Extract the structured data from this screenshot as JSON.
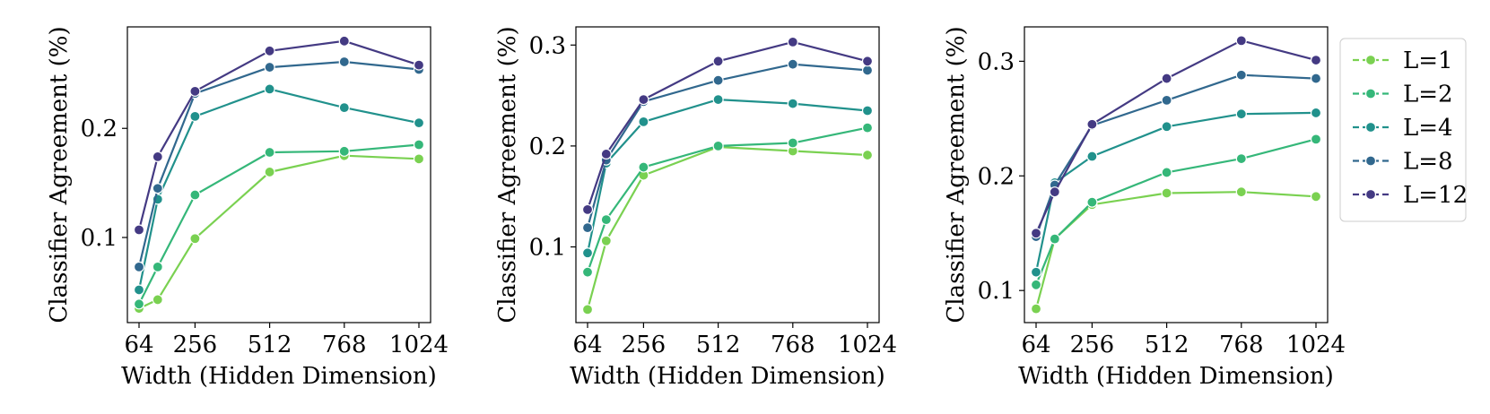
{
  "chart_data": [
    {
      "type": "line",
      "xlabel": "Width (Hidden Dimension)",
      "ylabel": "Classifier Agreement (%)",
      "x": [
        64,
        128,
        256,
        512,
        768,
        1024
      ],
      "xticks": [
        64,
        256,
        512,
        768,
        1024
      ],
      "xtick_labels": [
        "64",
        "256",
        "512",
        "768",
        "1024"
      ],
      "xlim": [
        24,
        1064
      ],
      "yticks": [
        0.1,
        0.2
      ],
      "ytick_labels": [
        "0.1",
        "0.2"
      ],
      "ylim": [
        0.022,
        0.293
      ],
      "grid": false,
      "series": [
        {
          "name": "L=1",
          "values": [
            0.035,
            0.043,
            0.099,
            0.16,
            0.175,
            0.172
          ]
        },
        {
          "name": "L=2",
          "values": [
            0.039,
            0.073,
            0.139,
            0.178,
            0.179,
            0.185
          ]
        },
        {
          "name": "L=4",
          "values": [
            0.052,
            0.135,
            0.211,
            0.236,
            0.219,
            0.205
          ]
        },
        {
          "name": "L=8",
          "values": [
            0.073,
            0.145,
            0.232,
            0.256,
            0.261,
            0.254
          ]
        },
        {
          "name": "L=12",
          "values": [
            0.107,
            0.174,
            0.234,
            0.271,
            0.28,
            0.258
          ]
        }
      ]
    },
    {
      "type": "line",
      "xlabel": "Width (Hidden Dimension)",
      "ylabel": "Classifier Agreement (%)",
      "x": [
        64,
        128,
        256,
        512,
        768,
        1024
      ],
      "xticks": [
        64,
        256,
        512,
        768,
        1024
      ],
      "xtick_labels": [
        "64",
        "256",
        "512",
        "768",
        "1024"
      ],
      "xlim": [
        24,
        1064
      ],
      "yticks": [
        0.1,
        0.2,
        0.3
      ],
      "ytick_labels": [
        "0.1",
        "0.2",
        "0.3"
      ],
      "ylim": [
        0.025,
        0.318
      ],
      "grid": false,
      "series": [
        {
          "name": "L=1",
          "values": [
            0.038,
            0.106,
            0.171,
            0.199,
            0.195,
            0.191
          ]
        },
        {
          "name": "L=2",
          "values": [
            0.075,
            0.127,
            0.179,
            0.2,
            0.203,
            0.218
          ]
        },
        {
          "name": "L=4",
          "values": [
            0.094,
            0.183,
            0.224,
            0.246,
            0.242,
            0.235
          ]
        },
        {
          "name": "L=8",
          "values": [
            0.119,
            0.186,
            0.244,
            0.265,
            0.281,
            0.275
          ]
        },
        {
          "name": "L=12",
          "values": [
            0.137,
            0.192,
            0.246,
            0.284,
            0.303,
            0.284
          ]
        }
      ]
    },
    {
      "type": "line",
      "xlabel": "Width (Hidden Dimension)",
      "ylabel": "Classifier Agreement (%)",
      "x": [
        64,
        128,
        256,
        512,
        768,
        1024
      ],
      "xticks": [
        64,
        256,
        512,
        768,
        1024
      ],
      "xtick_labels": [
        "64",
        "256",
        "512",
        "768",
        "1024"
      ],
      "xlim": [
        24,
        1064
      ],
      "yticks": [
        0.1,
        0.2,
        0.3
      ],
      "ytick_labels": [
        "0.1",
        "0.2",
        "0.3"
      ],
      "ylim": [
        0.072,
        0.33
      ],
      "grid": false,
      "series": [
        {
          "name": "L=1",
          "values": [
            0.084,
            0.145,
            0.175,
            0.185,
            0.186,
            0.182
          ]
        },
        {
          "name": "L=2",
          "values": [
            0.105,
            0.145,
            0.177,
            0.203,
            0.215,
            0.232
          ]
        },
        {
          "name": "L=4",
          "values": [
            0.116,
            0.194,
            0.217,
            0.243,
            0.254,
            0.255
          ]
        },
        {
          "name": "L=8",
          "values": [
            0.147,
            0.192,
            0.244,
            0.266,
            0.288,
            0.285
          ]
        },
        {
          "name": "L=12",
          "values": [
            0.15,
            0.186,
            0.245,
            0.285,
            0.318,
            0.301
          ]
        }
      ]
    }
  ],
  "legend": {
    "placement": "right",
    "entries": [
      {
        "label": "L=1",
        "color": "#7ad151"
      },
      {
        "label": "L=2",
        "color": "#35b779"
      },
      {
        "label": "L=4",
        "color": "#21918c"
      },
      {
        "label": "L=8",
        "color": "#31688e"
      },
      {
        "label": "L=12",
        "color": "#443a83"
      }
    ]
  }
}
